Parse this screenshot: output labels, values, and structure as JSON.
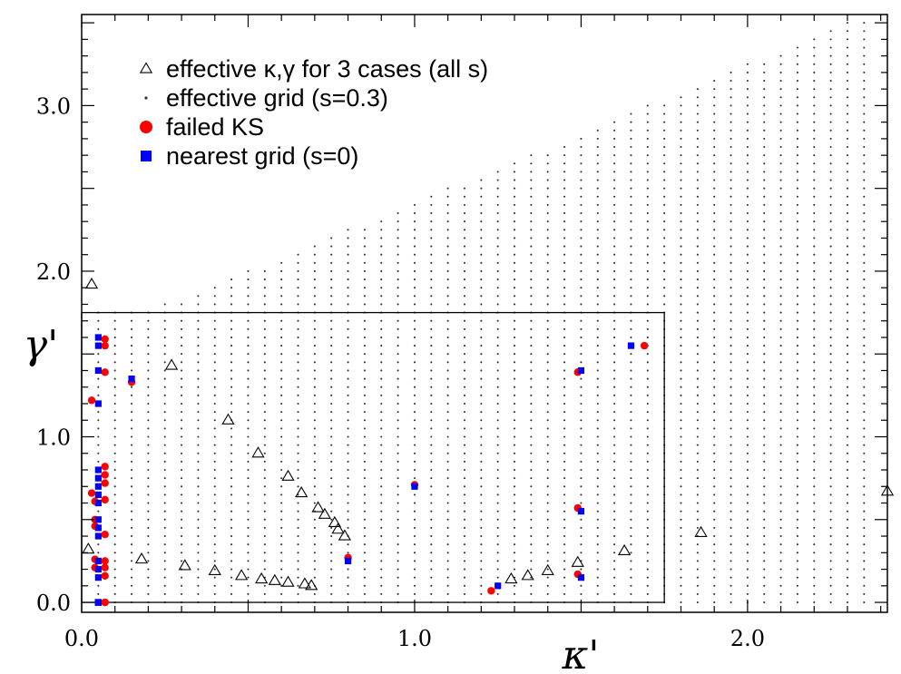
{
  "chart_data": {
    "type": "scatter",
    "xlabel": "κ'",
    "ylabel": "γ'",
    "xlim": [
      0.0,
      2.42
    ],
    "ylim": [
      -0.06,
      3.55
    ],
    "x_ticks": [
      {
        "value": 0.0,
        "label": "0.0"
      },
      {
        "value": 1.0,
        "label": "1.0"
      },
      {
        "value": 2.0,
        "label": "2.0"
      }
    ],
    "y_ticks": [
      {
        "value": 0.0,
        "label": "0.0"
      },
      {
        "value": 1.0,
        "label": "1.0"
      },
      {
        "value": 2.0,
        "label": "2.0"
      },
      {
        "value": 3.0,
        "label": "3.0"
      }
    ],
    "legend": [
      {
        "key": "triangles",
        "label": "effective κ,γ for 3 cases (all s)"
      },
      {
        "key": "grid",
        "label": "effective grid (s=0.3)"
      },
      {
        "key": "failed",
        "label": "failed KS"
      },
      {
        "key": "nearest",
        "label": "nearest grid (s=0)"
      }
    ],
    "legend_position": "top-left",
    "colors": {
      "failed": "#ff0000",
      "nearest": "#0000ff",
      "grid": "#333333",
      "triangle": "#000000"
    },
    "inset_box": {
      "x_range": [
        0.0,
        1.75
      ],
      "y_range": [
        0.0,
        1.75
      ]
    },
    "effective_grid": {
      "description": "effective grid (s=0.3): columns at kappa = 0.05 .. 2.35 step 0.05, gamma from 0 step 0.05 up to a column-dependent maximum",
      "kappa_start": 0.05,
      "kappa_step": 0.05,
      "kappa_count": 47,
      "gamma_step": 0.05,
      "column_gamma_max": [
        1.75,
        1.75,
        1.75,
        1.75,
        1.8,
        1.8,
        1.85,
        1.9,
        1.95,
        2.0,
        2.0,
        2.05,
        2.1,
        2.15,
        2.2,
        2.25,
        2.25,
        2.3,
        2.35,
        2.4,
        2.45,
        2.5,
        2.5,
        2.55,
        2.6,
        2.65,
        2.7,
        2.7,
        2.75,
        2.8,
        2.85,
        2.9,
        2.95,
        3.0,
        3.0,
        3.05,
        3.1,
        3.15,
        3.2,
        3.25,
        3.25,
        3.3,
        3.35,
        3.4,
        3.45,
        3.5,
        3.5
      ]
    },
    "series": [
      {
        "name": "effective κ,γ for 3 cases (all s)",
        "marker": "triangle",
        "x": [
          0.02,
          0.03,
          0.18,
          0.27,
          0.31,
          0.4,
          0.44,
          0.48,
          0.53,
          0.54,
          0.58,
          0.62,
          0.62,
          0.66,
          0.67,
          0.69,
          0.71,
          0.73,
          0.76,
          0.77,
          0.79,
          1.29,
          1.34,
          1.4,
          1.49,
          1.63,
          1.86,
          2.42
        ],
        "y": [
          0.32,
          1.92,
          0.26,
          1.43,
          0.22,
          0.19,
          1.1,
          0.16,
          0.9,
          0.14,
          0.13,
          0.76,
          0.12,
          0.66,
          0.11,
          0.1,
          0.57,
          0.53,
          0.48,
          0.44,
          0.4,
          0.14,
          0.16,
          0.19,
          0.24,
          0.31,
          0.42,
          0.67
        ]
      },
      {
        "name": "failed KS",
        "marker": "circle",
        "x": [
          0.03,
          0.03,
          0.04,
          0.04,
          0.04,
          0.04,
          0.04,
          0.07,
          0.07,
          0.07,
          0.07,
          0.07,
          0.07,
          0.07,
          0.07,
          0.07,
          0.07,
          0.07,
          0.07,
          0.07,
          0.15,
          0.8,
          1.0,
          1.23,
          1.49,
          1.49,
          1.49,
          1.69
        ],
        "y": [
          1.22,
          0.66,
          0.61,
          0.5,
          0.46,
          0.26,
          0.21,
          1.59,
          1.55,
          1.39,
          0.82,
          0.77,
          0.72,
          0.62,
          0.41,
          0.25,
          0.21,
          0.16,
          0.0,
          0.0,
          1.33,
          0.27,
          0.71,
          0.07,
          1.39,
          0.57,
          0.17,
          1.55
        ]
      },
      {
        "name": "nearest grid (s=0)",
        "marker": "square",
        "x": [
          0.05,
          0.05,
          0.05,
          0.05,
          0.05,
          0.05,
          0.05,
          0.05,
          0.05,
          0.05,
          0.05,
          0.05,
          0.05,
          0.05,
          0.05,
          0.05,
          0.05,
          0.05,
          0.05,
          0.05,
          0.05,
          0.15,
          0.8,
          1.0,
          1.25,
          1.5,
          1.5,
          1.5,
          1.65
        ],
        "y": [
          1.6,
          1.55,
          1.4,
          1.2,
          0.8,
          0.75,
          0.7,
          0.65,
          0.6,
          0.5,
          0.45,
          0.4,
          0.25,
          0.2,
          0.15,
          0.0,
          0.0,
          0.0,
          0.0,
          0.0,
          0.0,
          1.35,
          0.25,
          0.7,
          0.1,
          1.4,
          0.55,
          0.15,
          1.55
        ]
      }
    ]
  }
}
